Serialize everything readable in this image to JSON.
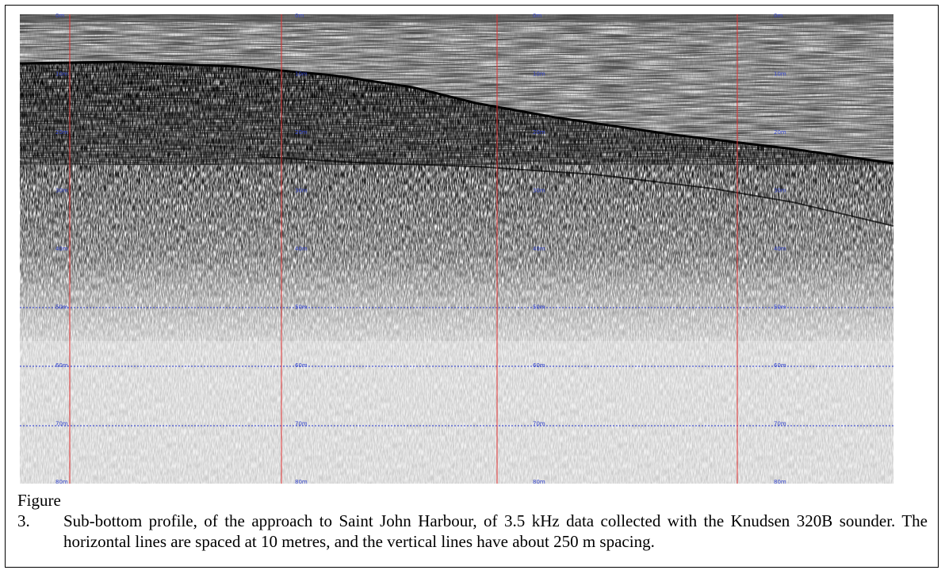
{
  "figure": {
    "label": "Figure 3.",
    "caption": "Sub-bottom profile, of the approach to Saint John Harbour, of 3.5 kHz data collected with the Knudsen 320B sounder. The horizontal lines are spaced at 10 metres, and the vertical lines have about 250 m spacing.",
    "depth_labels": [
      "0m",
      "10m",
      "20m",
      "30m",
      "40m",
      "50m",
      "60m",
      "70m",
      "80m"
    ]
  }
}
